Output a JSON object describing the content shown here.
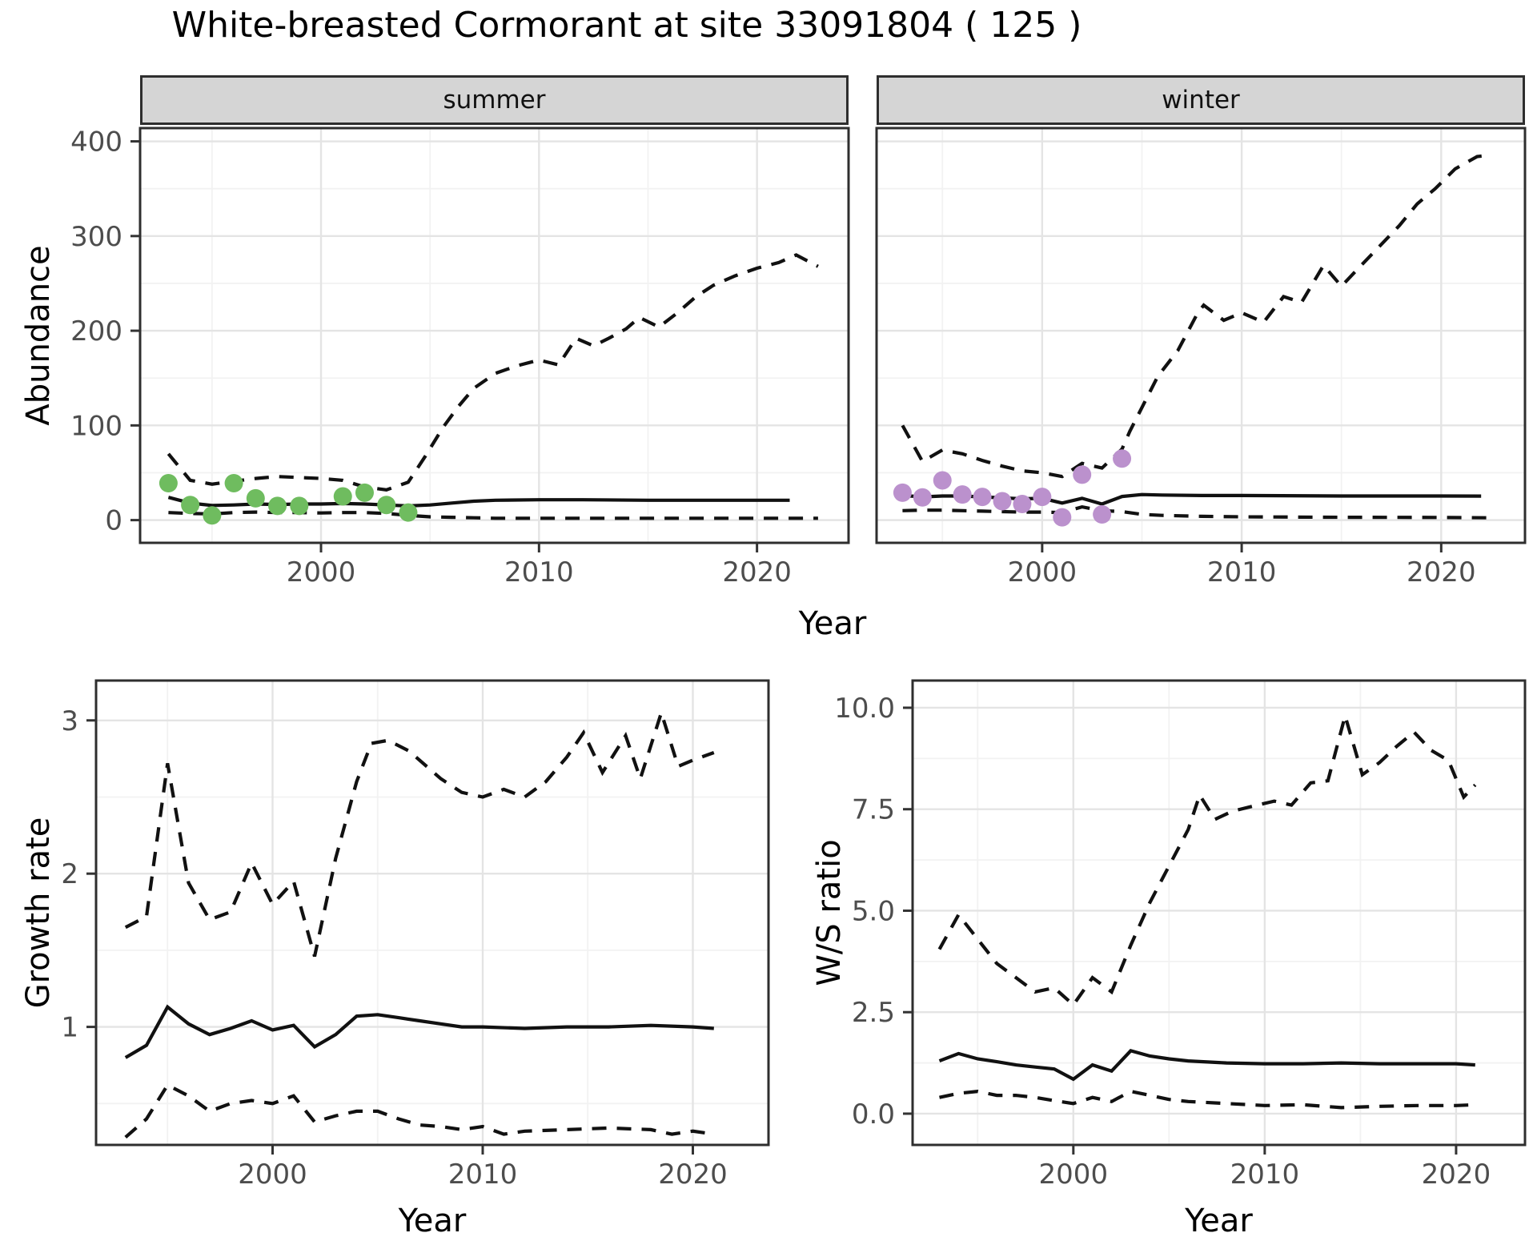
{
  "title": "White-breasted Cormorant at site 33091804 ( 125 )",
  "colors": {
    "observed_summer": "#6fbc5f",
    "observed_winter": "#bb91cd",
    "line": "#111111",
    "strip_fill": "#d5d5d5",
    "panel_border": "#2e2e2e",
    "grid_major": "#e4e4e4",
    "grid_minor": "#f2f2f2",
    "tick_text": "#4d4d4d"
  },
  "chart_data": [
    {
      "id": "abundance_summer",
      "type": "line+scatter",
      "facet_label": "summer",
      "ylabel": "Abundance",
      "xlabel": "Year",
      "xlim": [
        1991.7,
        2024.2
      ],
      "ylim": [
        -24,
        414
      ],
      "x_ticks": [
        2000,
        2010,
        2020
      ],
      "x_tick_labels": [
        "2000",
        "2010",
        "2020"
      ],
      "x_minor": [
        1995,
        2005,
        2015
      ],
      "y_ticks": [
        0,
        100,
        200,
        300,
        400
      ],
      "y_tick_labels": [
        "0",
        "100",
        "200",
        "300",
        "400"
      ],
      "y_minor": [
        50,
        150,
        250,
        350
      ],
      "legend": "none",
      "grid": "on",
      "series": [
        {
          "name": "upper_ci",
          "style": "dashed",
          "x": [
            1993,
            1994,
            1995,
            1996,
            1997,
            1998,
            1999,
            2000,
            2001,
            2002,
            2003,
            2004,
            2004.8,
            2005.6,
            2006.3,
            2007,
            2008,
            2009,
            2010,
            2010.9,
            2011.7,
            2012.5,
            2013.2,
            2014,
            2014.6,
            2015.5,
            2016.3,
            2017.2,
            2018,
            2019,
            2020,
            2021,
            2021.8,
            2022.8
          ],
          "y": [
            70,
            42,
            38,
            41,
            44,
            46,
            45,
            44,
            42,
            35,
            32,
            40,
            68,
            98,
            120,
            139,
            155,
            163,
            169,
            164,
            192,
            184,
            192,
            202,
            214,
            204,
            218,
            236,
            248,
            258,
            266,
            272,
            280,
            268
          ]
        },
        {
          "name": "median",
          "style": "solid",
          "x": [
            1993,
            1994,
            1995,
            1996,
            1997,
            1998,
            1999,
            2000,
            2001,
            2002,
            2003,
            2004,
            2005,
            2006,
            2007,
            2008,
            2010,
            2012,
            2015,
            2018,
            2021.5
          ],
          "y": [
            24,
            18,
            15.5,
            16,
            17,
            16.5,
            17,
            17,
            17.5,
            17,
            16,
            15,
            16,
            18,
            20,
            21,
            21.5,
            21.5,
            21,
            21,
            21
          ]
        },
        {
          "name": "lower_ci",
          "style": "dashed",
          "x": [
            1993,
            1994,
            1995,
            1996,
            1997,
            1998,
            1999,
            2000,
            2001,
            2002,
            2003,
            2004,
            2005,
            2006,
            2007,
            2008,
            2010,
            2015,
            2020,
            2022.8
          ],
          "y": [
            8,
            7,
            6.5,
            8,
            8.5,
            8,
            8,
            7.5,
            8,
            8,
            7,
            5,
            3.5,
            3,
            2.5,
            2,
            2,
            2,
            2,
            2
          ]
        },
        {
          "name": "observations",
          "style": "points",
          "color": "#6fbc5f",
          "x": [
            1993,
            1994,
            1995,
            1996,
            1997,
            1998,
            1999,
            2001,
            2002,
            2003,
            2004
          ],
          "y": [
            39,
            16,
            5,
            39,
            23,
            15,
            15,
            25,
            29,
            16,
            8
          ]
        }
      ]
    },
    {
      "id": "abundance_winter",
      "type": "line+scatter",
      "facet_label": "winter",
      "ylabel": "Abundance",
      "xlabel": "Year",
      "xlim": [
        1991.7,
        2024.2
      ],
      "ylim": [
        -24,
        414
      ],
      "x_ticks": [
        2000,
        2010,
        2020
      ],
      "x_tick_labels": [
        "2000",
        "2010",
        "2020"
      ],
      "x_minor": [
        1995,
        2005,
        2015
      ],
      "y_ticks": [
        0,
        100,
        200,
        300,
        400
      ],
      "y_tick_labels": [],
      "y_minor": [
        50,
        150,
        250,
        350
      ],
      "legend": "none",
      "grid": "on",
      "series": [
        {
          "name": "upper_ci",
          "style": "dashed",
          "x": [
            1993,
            1994,
            1995,
            1996,
            1997,
            1998,
            1999,
            2000,
            2001,
            2002,
            2003,
            2004,
            2004.4,
            2005.8,
            2006.8,
            2007.8,
            2008.1,
            2009.1,
            2010,
            2011.1,
            2012.1,
            2013,
            2014.1,
            2015,
            2015.9,
            2016.9,
            2017.9,
            2018.8,
            2019.7,
            2020.7,
            2021.8,
            2022.3
          ],
          "y": [
            100,
            62,
            74,
            70,
            63,
            57,
            52,
            50,
            46,
            60,
            55,
            75,
            94,
            152,
            179,
            219,
            227,
            211,
            219,
            209,
            236,
            230,
            269,
            247,
            267,
            289,
            311,
            334,
            350,
            371,
            384,
            385
          ]
        },
        {
          "name": "median",
          "style": "solid",
          "x": [
            1993,
            1994,
            1995,
            1996,
            1997,
            1998,
            1999,
            2000,
            2001,
            2002,
            2003,
            2004,
            2005,
            2006,
            2008,
            2010,
            2015,
            2020,
            2022
          ],
          "y": [
            26,
            24.5,
            25.5,
            25.5,
            24.5,
            23.5,
            22.5,
            23,
            18,
            23,
            17,
            25,
            27,
            26.5,
            26,
            26,
            25.5,
            25.5,
            25.4
          ]
        },
        {
          "name": "lower_ci",
          "style": "dashed",
          "x": [
            1993,
            1994,
            1995,
            1996,
            1997,
            1998,
            1999,
            2000,
            2001,
            2002,
            2003,
            2004,
            2005,
            2006,
            2008,
            2010,
            2015,
            2020,
            2022.3
          ],
          "y": [
            10,
            10.5,
            10.5,
            10,
            9.5,
            9,
            8.5,
            8.5,
            8,
            14,
            10,
            9,
            6,
            5,
            4,
            3.5,
            3,
            2.8,
            2.5
          ]
        },
        {
          "name": "observations",
          "style": "points",
          "color": "#bb91cd",
          "x": [
            1993,
            1994,
            1995,
            1996,
            1997,
            1998,
            1999,
            2000,
            2001,
            2002,
            2003,
            2004
          ],
          "y": [
            29,
            24,
            42,
            27,
            24.5,
            20,
            17,
            24.5,
            3,
            48,
            6,
            65
          ]
        }
      ]
    },
    {
      "id": "growth_rate",
      "type": "line",
      "facet_label": "",
      "ylabel": "Growth rate",
      "xlabel": "Year",
      "xlim": [
        1991.6,
        2023.6
      ],
      "ylim": [
        0.23,
        3.26
      ],
      "x_ticks": [
        2000,
        2010,
        2020
      ],
      "x_tick_labels": [
        "2000",
        "2010",
        "2020"
      ],
      "x_minor": [
        1995,
        2005,
        2015
      ],
      "y_ticks": [
        1,
        2,
        3
      ],
      "y_tick_labels": [
        "1",
        "2",
        "3"
      ],
      "y_minor": [
        0.5,
        1.5,
        2.5
      ],
      "legend": "none",
      "grid": "on",
      "series": [
        {
          "name": "upper_ci",
          "style": "dashed",
          "x": [
            1993,
            1994,
            1995,
            1996,
            1997,
            1998,
            1999,
            2000,
            2001,
            2002,
            2003,
            2004,
            2004.7,
            2005.5,
            2006.5,
            2008,
            2009,
            2010,
            2011,
            2012,
            2013,
            2014,
            2014.8,
            2015.7,
            2016.8,
            2017.5,
            2018.5,
            2019.3,
            2020,
            2021
          ],
          "y": [
            1.65,
            1.72,
            2.72,
            1.94,
            1.7,
            1.75,
            2.07,
            1.8,
            1.95,
            1.46,
            2.1,
            2.6,
            2.85,
            2.87,
            2.8,
            2.62,
            2.53,
            2.5,
            2.55,
            2.5,
            2.6,
            2.76,
            2.92,
            2.66,
            2.9,
            2.62,
            3.05,
            2.7,
            2.74,
            2.79
          ]
        },
        {
          "name": "median",
          "style": "solid",
          "x": [
            1993,
            1994,
            1995,
            1996,
            1997,
            1998,
            1999,
            2000,
            2001,
            2002,
            2003,
            2004,
            2005,
            2006,
            2007,
            2008,
            2009,
            2010,
            2012,
            2014,
            2016,
            2018,
            2020,
            2021
          ],
          "y": [
            0.8,
            0.88,
            1.13,
            1.02,
            0.95,
            0.99,
            1.04,
            0.98,
            1.01,
            0.87,
            0.95,
            1.07,
            1.08,
            1.06,
            1.04,
            1.02,
            1.0,
            1.0,
            0.99,
            1.0,
            1.0,
            1.01,
            1.0,
            0.99
          ]
        },
        {
          "name": "lower_ci",
          "style": "dashed",
          "x": [
            1993,
            1994,
            1995,
            1996,
            1997,
            1998,
            1999,
            2000,
            2001,
            2002,
            2003,
            2004,
            2005,
            2006,
            2007,
            2008,
            2009,
            2010,
            2011,
            2012,
            2014,
            2016,
            2018,
            2019,
            2020,
            2021
          ],
          "y": [
            0.28,
            0.4,
            0.62,
            0.55,
            0.45,
            0.5,
            0.52,
            0.5,
            0.55,
            0.38,
            0.42,
            0.45,
            0.45,
            0.4,
            0.36,
            0.35,
            0.33,
            0.35,
            0.3,
            0.32,
            0.33,
            0.34,
            0.33,
            0.3,
            0.32,
            0.3
          ]
        }
      ]
    },
    {
      "id": "ws_ratio",
      "type": "line",
      "facet_label": "",
      "ylabel": "W/S ratio",
      "xlabel": "Year",
      "xlim": [
        1991.6,
        2023.6
      ],
      "ylim": [
        -0.77,
        10.67
      ],
      "x_ticks": [
        2000,
        2010,
        2020
      ],
      "x_tick_labels": [
        "2000",
        "2010",
        "2020"
      ],
      "x_minor": [
        1995,
        2005,
        2015
      ],
      "y_ticks": [
        0,
        2.5,
        5,
        7.5,
        10
      ],
      "y_tick_labels": [
        "0.0",
        "2.5",
        "5.0",
        "7.5",
        "10.0"
      ],
      "y_minor": [
        1.25,
        3.75,
        6.25,
        8.75
      ],
      "legend": "none",
      "grid": "on",
      "series": [
        {
          "name": "upper_ci",
          "style": "dashed",
          "x": [
            1993,
            1994,
            1995,
            1996,
            1997,
            1998,
            1999,
            2000,
            2001,
            2002,
            2003,
            2004,
            2005,
            2006,
            2006.6,
            2007.4,
            2008.3,
            2009.6,
            2010.5,
            2011.4,
            2012.4,
            2013.3,
            2014.2,
            2015.1,
            2016,
            2016.9,
            2017.8,
            2018.7,
            2019.6,
            2020.4,
            2021
          ],
          "y": [
            4.05,
            4.9,
            4.3,
            3.7,
            3.35,
            3.0,
            3.1,
            2.68,
            3.35,
            3.0,
            4.15,
            5.2,
            6.1,
            7.0,
            7.85,
            7.25,
            7.45,
            7.6,
            7.7,
            7.6,
            8.15,
            8.2,
            9.8,
            8.35,
            8.65,
            9.05,
            9.4,
            8.95,
            8.7,
            7.8,
            8.1
          ]
        },
        {
          "name": "median",
          "style": "solid",
          "x": [
            1993,
            1994,
            1995,
            1996,
            1997,
            1998,
            1999,
            2000,
            2001,
            2002,
            2003,
            2004,
            2005,
            2006,
            2008,
            2010,
            2012,
            2014,
            2016,
            2018,
            2020,
            2021
          ],
          "y": [
            1.3,
            1.48,
            1.35,
            1.28,
            1.2,
            1.15,
            1.1,
            0.85,
            1.2,
            1.05,
            1.55,
            1.42,
            1.35,
            1.3,
            1.25,
            1.23,
            1.23,
            1.25,
            1.23,
            1.23,
            1.23,
            1.2
          ]
        },
        {
          "name": "lower_ci",
          "style": "dashed",
          "x": [
            1993,
            1994,
            1995,
            1996,
            1997,
            1998,
            1999,
            2000,
            2001,
            2002,
            2003,
            2004,
            2005,
            2006,
            2008,
            2010,
            2012,
            2014,
            2016,
            2018,
            2020,
            2021
          ],
          "y": [
            0.4,
            0.5,
            0.55,
            0.45,
            0.45,
            0.4,
            0.32,
            0.25,
            0.4,
            0.3,
            0.55,
            0.45,
            0.35,
            0.3,
            0.25,
            0.2,
            0.22,
            0.15,
            0.18,
            0.2,
            0.2,
            0.22
          ]
        }
      ]
    }
  ]
}
